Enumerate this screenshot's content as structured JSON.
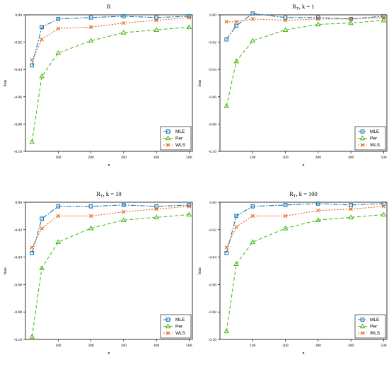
{
  "colors": {
    "MLE": "#1f78b4",
    "Per": "#4dbf1f",
    "WLS": "#e3661a"
  },
  "chart_data": [
    {
      "type": "line",
      "title": "R",
      "xlabel": "n",
      "ylabel": "bias",
      "xlim": [
        0,
        510
      ],
      "ylim": [
        -0.1,
        0
      ],
      "grid": false,
      "legend_position": "bottom-right",
      "x_ticks": [
        "100",
        "200",
        "300",
        "400",
        "500"
      ],
      "y_ticks": [
        "0.00",
        "-0.02",
        "-0.04",
        "-0.06",
        "-0.08",
        "-0.10"
      ],
      "x": [
        20,
        50,
        100,
        200,
        300,
        400,
        500
      ],
      "series": [
        {
          "name": "MLE",
          "values": [
            -0.037,
            -0.009,
            -0.003,
            -0.002,
            -0.001,
            -0.002,
            -0.001
          ]
        },
        {
          "name": "Per",
          "values": [
            -0.093,
            -0.045,
            -0.028,
            -0.019,
            -0.013,
            -0.011,
            -0.009
          ]
        },
        {
          "name": "WLS",
          "values": [
            -0.033,
            -0.018,
            -0.01,
            -0.009,
            -0.006,
            -0.004,
            -0.002
          ]
        }
      ]
    },
    {
      "type": "line",
      "title": "R_T, k = 1",
      "title_main": "R",
      "title_sub": "T",
      "title_rest": ", k = 1",
      "xlabel": "n",
      "ylabel": "bias",
      "xlim": [
        0,
        510
      ],
      "ylim": [
        -0.1,
        0
      ],
      "grid": false,
      "legend_position": "bottom-right",
      "x_ticks": [
        "100",
        "200",
        "300",
        "400",
        "500"
      ],
      "y_ticks": [
        "0.00",
        "-0.02",
        "-0.04",
        "-0.06",
        "-0.08",
        "-0.10"
      ],
      "x": [
        20,
        50,
        100,
        200,
        300,
        400,
        500
      ],
      "series": [
        {
          "name": "MLE",
          "values": [
            -0.018,
            -0.008,
            0.001,
            -0.002,
            -0.002,
            -0.003,
            -0.001
          ]
        },
        {
          "name": "Per",
          "values": [
            -0.067,
            -0.034,
            -0.019,
            -0.011,
            -0.007,
            -0.006,
            -0.004
          ]
        },
        {
          "name": "WLS",
          "values": [
            -0.005,
            -0.005,
            -0.003,
            -0.004,
            -0.003,
            -0.003,
            -0.002
          ]
        }
      ]
    },
    {
      "type": "line",
      "title": "R_T, k = 10",
      "title_main": "R",
      "title_sub": "T",
      "title_rest": ", k = 10",
      "xlabel": "n",
      "ylabel": "bias",
      "xlim": [
        0,
        510
      ],
      "ylim": [
        -0.1,
        0
      ],
      "grid": false,
      "legend_position": "bottom-right",
      "x_ticks": [
        "100",
        "200",
        "300",
        "400",
        "500"
      ],
      "y_ticks": [
        "0.00",
        "-0.02",
        "-0.04",
        "-0.06",
        "-0.08",
        "-0.10"
      ],
      "x": [
        20,
        50,
        100,
        200,
        300,
        400,
        500
      ],
      "series": [
        {
          "name": "MLE",
          "values": [
            -0.037,
            -0.012,
            -0.003,
            -0.003,
            -0.002,
            -0.003,
            -0.002
          ]
        },
        {
          "name": "Per",
          "values": [
            -0.098,
            -0.048,
            -0.029,
            -0.019,
            -0.013,
            -0.011,
            -0.009
          ]
        },
        {
          "name": "WLS",
          "values": [
            -0.033,
            -0.019,
            -0.01,
            -0.01,
            -0.007,
            -0.005,
            -0.003
          ]
        }
      ]
    },
    {
      "type": "line",
      "title": "R_T, k = 100",
      "title_main": "R",
      "title_sub": "T",
      "title_rest": ", k = 100",
      "xlabel": "n",
      "ylabel": "bias",
      "xlim": [
        0,
        510
      ],
      "ylim": [
        -0.1,
        0
      ],
      "grid": false,
      "legend_position": "bottom-right",
      "x_ticks": [
        "100",
        "200",
        "300",
        "400",
        "500"
      ],
      "y_ticks": [
        "0.00",
        "-0.02",
        "-0.04",
        "-0.06",
        "-0.08",
        "-0.10"
      ],
      "x": [
        20,
        50,
        100,
        200,
        300,
        400,
        500
      ],
      "series": [
        {
          "name": "MLE",
          "values": [
            -0.037,
            -0.01,
            -0.003,
            -0.002,
            -0.001,
            -0.002,
            -0.001
          ]
        },
        {
          "name": "Per",
          "values": [
            -0.094,
            -0.045,
            -0.029,
            -0.019,
            -0.013,
            -0.011,
            -0.009
          ]
        },
        {
          "name": "WLS",
          "values": [
            -0.033,
            -0.018,
            -0.01,
            -0.01,
            -0.006,
            -0.005,
            -0.003
          ]
        }
      ]
    }
  ]
}
